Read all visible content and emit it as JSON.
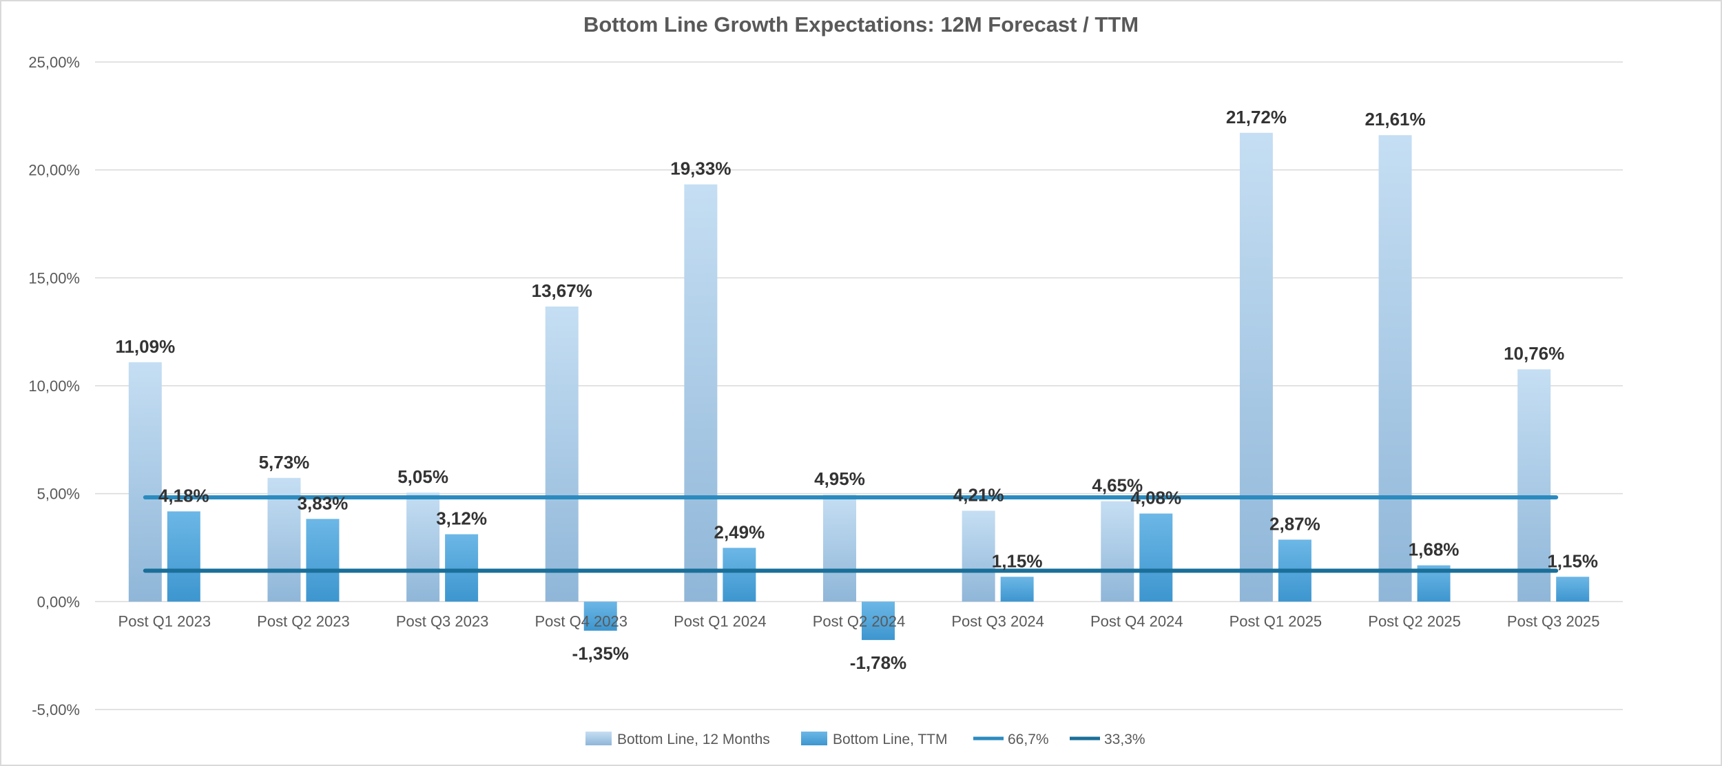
{
  "chart_data": {
    "type": "bar",
    "title": "Bottom Line Growth Expectations: 12M Forecast / TTM",
    "categories": [
      "Post Q1 2023",
      "Post Q2 2023",
      "Post Q3 2023",
      "Post Q4 2023",
      "Post Q1 2024",
      "Post Q2 2024",
      "Post Q3 2024",
      "Post Q4 2024",
      "Post Q1 2025",
      "Post Q2 2025",
      "Post Q3 2025"
    ],
    "series": [
      {
        "name": "Bottom Line, 12 Months",
        "values": [
          11.09,
          5.73,
          5.05,
          13.67,
          19.33,
          4.95,
          4.21,
          4.65,
          21.72,
          21.61,
          10.76
        ],
        "labels": [
          "11,09%",
          "5,73%",
          "5,05%",
          "13,67%",
          "19,33%",
          "4,95%",
          "4,21%",
          "4,65%",
          "21,72%",
          "21,61%",
          "10,76%"
        ],
        "color_top": "#c5def3",
        "color_bottom": "#8fb6d8"
      },
      {
        "name": "Bottom Line, TTM",
        "values": [
          4.18,
          3.83,
          3.12,
          -1.35,
          2.49,
          -1.78,
          1.15,
          4.08,
          2.87,
          1.68,
          1.15
        ],
        "labels": [
          "4,18%",
          "3,83%",
          "3,12%",
          "-1,35%",
          "2,49%",
          "-1,78%",
          "1,15%",
          "4,08%",
          "2,87%",
          "1,68%",
          "1,15%"
        ],
        "color_top": "#6cb7e6",
        "color_bottom": "#3d96cf"
      }
    ],
    "reference_lines": [
      {
        "name": "66,7%",
        "value": 4.83,
        "color": "#2b8bbf"
      },
      {
        "name": "33,3%",
        "value": 1.43,
        "color": "#1a6f99"
      }
    ],
    "ylim": [
      -5,
      25
    ],
    "y_ticks": [
      -5,
      0,
      5,
      10,
      15,
      20,
      25
    ],
    "y_tick_labels": [
      "-5,00%",
      "0,00%",
      "5,00%",
      "10,00%",
      "15,00%",
      "20,00%",
      "25,00%"
    ],
    "xlabel": "",
    "ylabel": "",
    "grid": true,
    "legend_position": "bottom-center"
  }
}
